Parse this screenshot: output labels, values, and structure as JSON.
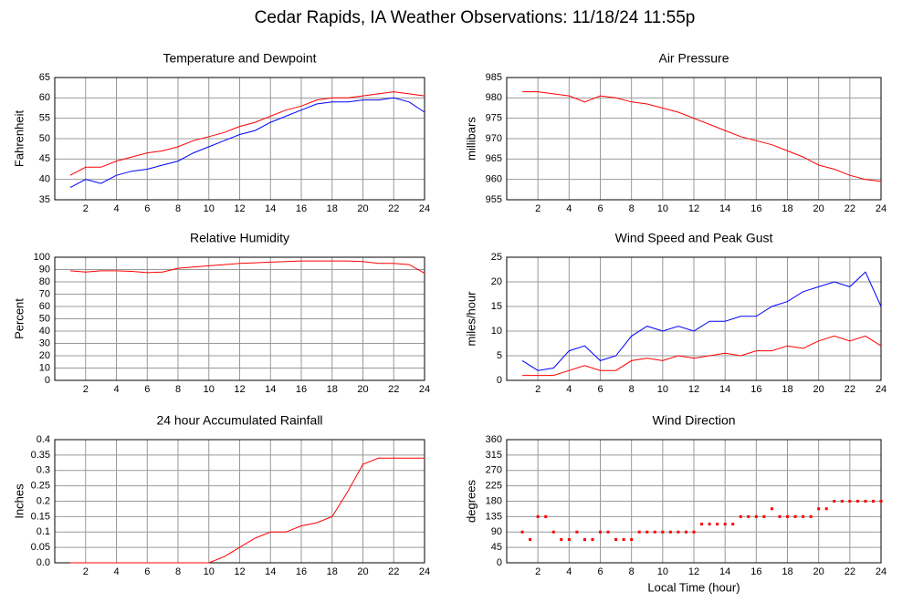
{
  "title": "Cedar Rapids, IA Weather Observations: 11/18/24 11:55p",
  "chart_data": [
    {
      "type": "line",
      "title": "Temperature and Dewpoint",
      "ylabel": "Fahrenheit",
      "x": [
        1,
        2,
        3,
        4,
        5,
        6,
        7,
        8,
        9,
        10,
        11,
        12,
        13,
        14,
        15,
        16,
        17,
        18,
        19,
        20,
        21,
        22,
        23,
        24
      ],
      "series": [
        {
          "color": "#ff0000",
          "values": [
            41,
            43,
            43,
            44.5,
            45.5,
            46.5,
            47,
            48,
            49.5,
            50.5,
            51.5,
            53,
            54,
            55.5,
            57,
            58,
            59.5,
            60,
            60,
            60.5,
            61,
            61.5,
            61,
            60.5
          ]
        },
        {
          "color": "#0000ff",
          "values": [
            38,
            40,
            39,
            41,
            42,
            42.5,
            43.5,
            44.5,
            46.5,
            48,
            49.5,
            51,
            52,
            54,
            55.5,
            57,
            58.5,
            59,
            59,
            59.5,
            59.5,
            60,
            59,
            56.5
          ]
        }
      ],
      "xlim": [
        0,
        24
      ],
      "xticks": [
        2,
        4,
        6,
        8,
        10,
        12,
        14,
        16,
        18,
        20,
        22,
        24
      ],
      "ylim": [
        35,
        65
      ],
      "yticks": [
        35,
        40,
        45,
        50,
        55,
        60,
        65
      ],
      "grid": true
    },
    {
      "type": "line",
      "title": "Air Pressure",
      "ylabel": "millibars",
      "x": [
        1,
        2,
        3,
        4,
        5,
        6,
        7,
        8,
        9,
        10,
        11,
        12,
        13,
        14,
        15,
        16,
        17,
        18,
        19,
        20,
        21,
        22,
        23,
        24
      ],
      "series": [
        {
          "color": "#ff0000",
          "values": [
            981.5,
            981.5,
            981,
            980.5,
            979,
            980.5,
            980,
            979,
            978.5,
            977.5,
            976.5,
            975,
            973.5,
            972,
            970.5,
            969.5,
            968.5,
            967,
            965.5,
            963.5,
            962.5,
            961,
            960,
            959.5
          ]
        }
      ],
      "xlim": [
        0,
        24
      ],
      "xticks": [
        2,
        4,
        6,
        8,
        10,
        12,
        14,
        16,
        18,
        20,
        22,
        24
      ],
      "ylim": [
        955,
        985
      ],
      "yticks": [
        955,
        960,
        965,
        970,
        975,
        980,
        985
      ],
      "grid": true
    },
    {
      "type": "line",
      "title": "Relative Humidity",
      "ylabel": "Percent",
      "x": [
        1,
        2,
        3,
        4,
        5,
        6,
        7,
        8,
        9,
        10,
        11,
        12,
        13,
        14,
        15,
        16,
        17,
        18,
        19,
        20,
        21,
        22,
        23,
        24
      ],
      "series": [
        {
          "color": "#ff0000",
          "values": [
            89,
            88,
            89,
            89,
            88.5,
            87.5,
            88,
            91,
            92,
            93,
            94,
            95,
            95.5,
            96,
            96.5,
            97,
            97,
            97,
            97,
            96.5,
            95,
            95,
            94,
            87
          ]
        }
      ],
      "xlim": [
        0,
        24
      ],
      "xticks": [
        2,
        4,
        6,
        8,
        10,
        12,
        14,
        16,
        18,
        20,
        22,
        24
      ],
      "ylim": [
        0,
        100
      ],
      "yticks": [
        0,
        10,
        20,
        30,
        40,
        50,
        60,
        70,
        80,
        90,
        100
      ],
      "grid": true
    },
    {
      "type": "line",
      "title": "Wind Speed and Peak Gust",
      "ylabel": "miles/hour",
      "x": [
        1,
        2,
        3,
        4,
        5,
        6,
        7,
        8,
        9,
        10,
        11,
        12,
        13,
        14,
        15,
        16,
        17,
        18,
        19,
        20,
        21,
        22,
        23,
        24
      ],
      "series": [
        {
          "color": "#0000ff",
          "values": [
            4,
            2,
            2.5,
            6,
            7,
            4,
            5,
            9,
            11,
            10,
            11,
            10,
            12,
            12,
            13,
            13,
            15,
            16,
            18,
            19,
            20,
            19,
            22,
            15
          ]
        },
        {
          "color": "#ff0000",
          "values": [
            1,
            1,
            1,
            2,
            3,
            2,
            2,
            4,
            4.5,
            4,
            5,
            4.5,
            5,
            5.5,
            5,
            6,
            6,
            7,
            6.5,
            8,
            9,
            8,
            9,
            7
          ]
        }
      ],
      "xlim": [
        0,
        24
      ],
      "xticks": [
        2,
        4,
        6,
        8,
        10,
        12,
        14,
        16,
        18,
        20,
        22,
        24
      ],
      "ylim": [
        0,
        25
      ],
      "yticks": [
        0,
        5,
        10,
        15,
        20,
        25
      ],
      "grid": true
    },
    {
      "type": "line",
      "title": "24 hour Accumulated Rainfall",
      "ylabel": "Inches",
      "x": [
        1,
        2,
        3,
        4,
        5,
        6,
        7,
        8,
        9,
        10,
        11,
        12,
        13,
        14,
        15,
        16,
        17,
        18,
        19,
        20,
        21,
        22,
        23,
        24
      ],
      "series": [
        {
          "color": "#ff0000",
          "values": [
            0,
            0,
            0,
            0,
            0,
            0,
            0,
            0,
            0,
            0,
            0.02,
            0.05,
            0.08,
            0.1,
            0.1,
            0.12,
            0.13,
            0.15,
            0.23,
            0.32,
            0.34,
            0.34,
            0.34,
            0.34
          ]
        }
      ],
      "xlim": [
        0,
        24
      ],
      "xticks": [
        2,
        4,
        6,
        8,
        10,
        12,
        14,
        16,
        18,
        20,
        22,
        24
      ],
      "ylim": [
        0,
        0.4
      ],
      "yticks": [
        {
          "value": 0,
          "label": "0.0"
        },
        0.05,
        0.1,
        0.15,
        0.2,
        0.25,
        0.3,
        0.35,
        0.4
      ],
      "grid": true
    },
    {
      "type": "scatter",
      "title": "Wind Direction",
      "ylabel": "degrees",
      "xlabel": "Local Time (hour)",
      "x": [
        1,
        1.5,
        2,
        2.5,
        3,
        3.5,
        4,
        4.5,
        5,
        5.5,
        6,
        6.5,
        7,
        7.5,
        8,
        8.5,
        9,
        9.5,
        10,
        10.5,
        11,
        11.5,
        12,
        12.5,
        13,
        13.5,
        14,
        14.5,
        15,
        15.5,
        16,
        16.5,
        17,
        17.5,
        18,
        18.5,
        19,
        19.5,
        20,
        20.5,
        21,
        21.5,
        22,
        22.5,
        23,
        23.5,
        24
      ],
      "series": [
        {
          "color": "#ff0000",
          "values": [
            90,
            68,
            135,
            135,
            90,
            68,
            68,
            90,
            68,
            68,
            90,
            90,
            68,
            68,
            68,
            90,
            90,
            90,
            90,
            90,
            90,
            90,
            90,
            113,
            113,
            113,
            113,
            113,
            135,
            135,
            135,
            135,
            158,
            135,
            135,
            135,
            135,
            135,
            158,
            158,
            180,
            180,
            180,
            180,
            180,
            180,
            180
          ]
        }
      ],
      "xlim": [
        0,
        24
      ],
      "xticks": [
        2,
        4,
        6,
        8,
        10,
        12,
        14,
        16,
        18,
        20,
        22,
        24
      ],
      "ylim": [
        0,
        360
      ],
      "yticks": [
        0,
        45,
        90,
        135,
        180,
        225,
        270,
        315,
        360
      ],
      "grid": true
    }
  ]
}
